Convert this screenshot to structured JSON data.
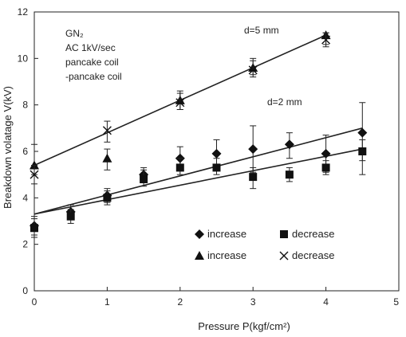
{
  "chart_data": {
    "type": "scatter",
    "title": "",
    "xlabel": "Pressure P(kgf/cm²)",
    "ylabel": "Breakdown volatage V(kV)",
    "xlim": [
      0,
      5
    ],
    "ylim": [
      0,
      12
    ],
    "xticks": [
      "0",
      "1",
      "2",
      "3",
      "4",
      "5"
    ],
    "yticks": [
      "0",
      "2",
      "4",
      "6",
      "8",
      "10",
      "12"
    ],
    "grid": false,
    "annotations": {
      "conditions": [
        "GN₂",
        "AC 1kV/sec",
        "pancake coil",
        "-pancake coil"
      ],
      "gap_5mm": "d=5 mm",
      "gap_2mm": "d=2 mm"
    },
    "legend": {
      "position": "lower-right",
      "entries": [
        {
          "marker": "diamond",
          "label": "increase"
        },
        {
          "marker": "square",
          "label": "decrease"
        },
        {
          "marker": "triangle",
          "label": "increase"
        },
        {
          "marker": "cross",
          "label": "decrease"
        }
      ]
    },
    "series": [
      {
        "gap": "d=5 mm",
        "marker": "triangle",
        "points": [
          {
            "x": 0,
            "y": 5.4,
            "lo": 5.0,
            "hi": 6.3
          },
          {
            "x": 1,
            "y": 5.7,
            "lo": 5.2,
            "hi": 6.1
          },
          {
            "x": 2,
            "y": 8.2,
            "lo": 7.8,
            "hi": 8.6
          },
          {
            "x": 3,
            "y": 9.6,
            "lo": 9.3,
            "hi": 10.0
          },
          {
            "x": 4,
            "y": 11.0,
            "lo": 10.6,
            "hi": 11.1
          }
        ]
      },
      {
        "gap": "d=5 mm",
        "marker": "cross",
        "points": [
          {
            "x": 0,
            "y": 5.0,
            "lo": 4.6,
            "hi": 5.4
          },
          {
            "x": 1,
            "y": 6.9,
            "lo": 6.4,
            "hi": 7.3
          },
          {
            "x": 2,
            "y": 8.1,
            "lo": 7.8,
            "hi": 8.5
          },
          {
            "x": 3,
            "y": 9.5,
            "lo": 9.2,
            "hi": 9.9
          },
          {
            "x": 4,
            "y": 10.8,
            "lo": 10.5,
            "hi": 11.1
          }
        ]
      },
      {
        "gap": "d=2 mm",
        "marker": "diamond",
        "points": [
          {
            "x": 0,
            "y": 2.8,
            "lo": 2.4,
            "hi": 3.2
          },
          {
            "x": 0.5,
            "y": 3.4,
            "lo": 3.1,
            "hi": 3.7
          },
          {
            "x": 1,
            "y": 4.1,
            "lo": 3.8,
            "hi": 4.4
          },
          {
            "x": 1.5,
            "y": 5.0,
            "lo": 4.7,
            "hi": 5.3
          },
          {
            "x": 2,
            "y": 5.7,
            "lo": 5.2,
            "hi": 6.2
          },
          {
            "x": 2.5,
            "y": 5.9,
            "lo": 5.4,
            "hi": 6.5
          },
          {
            "x": 3,
            "y": 6.1,
            "lo": 5.1,
            "hi": 7.1
          },
          {
            "x": 3.5,
            "y": 6.3,
            "lo": 5.7,
            "hi": 6.8
          },
          {
            "x": 4,
            "y": 5.9,
            "lo": 5.1,
            "hi": 6.7
          },
          {
            "x": 4.5,
            "y": 6.8,
            "lo": 5.6,
            "hi": 8.1
          }
        ]
      },
      {
        "gap": "d=2 mm",
        "marker": "square",
        "points": [
          {
            "x": 0,
            "y": 2.7,
            "lo": 2.3,
            "hi": 3.1
          },
          {
            "x": 0.5,
            "y": 3.2,
            "lo": 2.9,
            "hi": 3.5
          },
          {
            "x": 1,
            "y": 4.0,
            "lo": 3.7,
            "hi": 4.3
          },
          {
            "x": 1.5,
            "y": 4.8,
            "lo": 4.5,
            "hi": 5.2
          },
          {
            "x": 2,
            "y": 5.3,
            "lo": 5.0,
            "hi": 5.7
          },
          {
            "x": 2.5,
            "y": 5.3,
            "lo": 5.0,
            "hi": 5.7
          },
          {
            "x": 3,
            "y": 4.9,
            "lo": 4.4,
            "hi": 5.3
          },
          {
            "x": 3.5,
            "y": 5.0,
            "lo": 4.7,
            "hi": 5.3
          },
          {
            "x": 4,
            "y": 5.3,
            "lo": 5.0,
            "hi": 5.6
          },
          {
            "x": 4.5,
            "y": 6.0,
            "lo": 5.0,
            "hi": 6.5
          }
        ]
      }
    ],
    "trendlines": [
      {
        "gap": "d=5 mm",
        "x": [
          0,
          4
        ],
        "y": [
          5.4,
          11.0
        ]
      },
      {
        "gap": "d=2 mm",
        "x": [
          0,
          4.5
        ],
        "y": [
          3.3,
          7.0
        ]
      },
      {
        "gap": "d=2 mm",
        "x": [
          0,
          4.5
        ],
        "y": [
          3.3,
          6.1
        ]
      }
    ]
  }
}
